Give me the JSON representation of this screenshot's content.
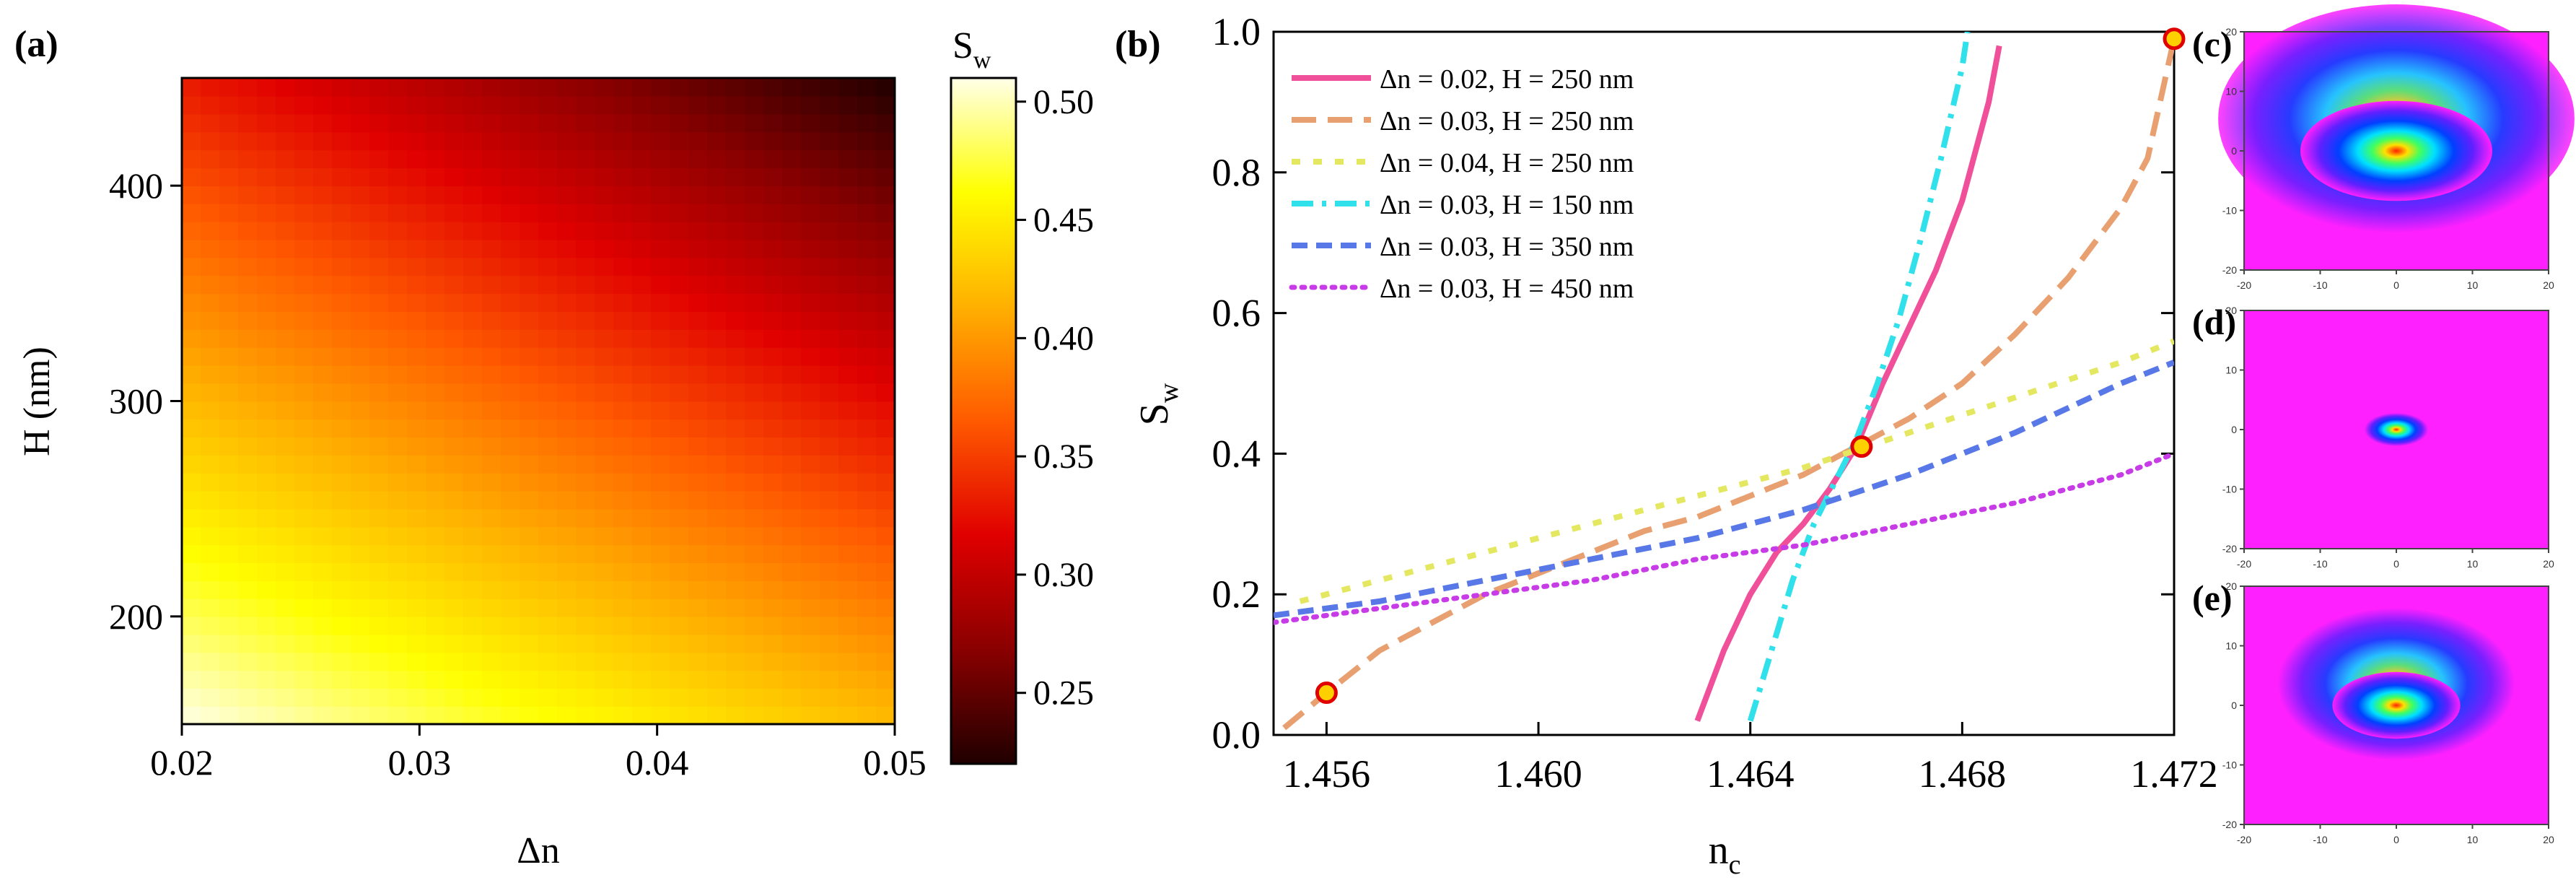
{
  "chart_data": [
    {
      "id": "a",
      "panel_label": "(a)",
      "type": "heatmap",
      "xlabel": "Δn",
      "ylabel": "H (nm)",
      "x_range": [
        0.02,
        0.05
      ],
      "y_range": [
        150,
        450
      ],
      "x_ticks": [
        "0.02",
        "0.03",
        "0.04",
        "0.05"
      ],
      "x_tick_values": [
        0.02,
        0.03,
        0.04,
        0.05
      ],
      "y_ticks": [
        "200",
        "300",
        "400"
      ],
      "y_tick_values": [
        200,
        300,
        400
      ],
      "colorbar": {
        "title_main": "S",
        "title_sub": "w",
        "range": [
          0.22,
          0.51
        ],
        "ticks": [
          "0.25",
          "0.30",
          "0.35",
          "0.40",
          "0.45",
          "0.50"
        ],
        "tick_values": [
          0.25,
          0.3,
          0.35,
          0.4,
          0.45,
          0.5
        ],
        "colormap": [
          "#200000",
          "#8a0000",
          "#e00000",
          "#ff5a00",
          "#ffb000",
          "#ffff00",
          "#ffffe8"
        ]
      },
      "corner_values": {
        "dn_0.02_H_150": 0.51,
        "dn_0.05_H_150": 0.42,
        "dn_0.02_H_450": 0.33,
        "dn_0.05_H_450": 0.22
      }
    },
    {
      "id": "b",
      "panel_label": "(b)",
      "type": "line",
      "xlabel_main": "n",
      "xlabel_sub": "c",
      "ylabel_main": "S",
      "ylabel_sub": "w",
      "xlim": [
        1.455,
        1.472
      ],
      "ylim": [
        0.0,
        1.0
      ],
      "x_ticks": [
        "1.456",
        "1.460",
        "1.464",
        "1.468",
        "1.472"
      ],
      "x_tick_values": [
        1.456,
        1.46,
        1.464,
        1.468,
        1.472
      ],
      "y_ticks": [
        "0.0",
        "0.2",
        "0.4",
        "0.6",
        "0.8",
        "1.0"
      ],
      "y_tick_values": [
        0.0,
        0.2,
        0.4,
        0.6,
        0.8,
        1.0
      ],
      "legend_position": "top-left",
      "series": [
        {
          "name": "Δn = 0.02, H = 250 nm",
          "color": "#f0509a",
          "dash": "solid",
          "x": [
            1.463,
            1.4635,
            1.464,
            1.4645,
            1.465,
            1.4655,
            1.466,
            1.4665,
            1.467,
            1.4675,
            1.468,
            1.4685,
            1.4687
          ],
          "y": [
            0.02,
            0.12,
            0.2,
            0.26,
            0.3,
            0.35,
            0.41,
            0.5,
            0.58,
            0.66,
            0.76,
            0.9,
            0.98
          ]
        },
        {
          "name": "Δn = 0.03, H = 250 nm",
          "color": "#e8a070",
          "dash": "long",
          "x": [
            1.4552,
            1.456,
            1.457,
            1.458,
            1.459,
            1.46,
            1.461,
            1.462,
            1.463,
            1.464,
            1.465,
            1.466,
            1.467,
            1.468,
            1.469,
            1.47,
            1.471,
            1.4715,
            1.472
          ],
          "y": [
            0.01,
            0.06,
            0.12,
            0.16,
            0.2,
            0.23,
            0.26,
            0.29,
            0.31,
            0.34,
            0.37,
            0.41,
            0.45,
            0.5,
            0.57,
            0.65,
            0.75,
            0.82,
            0.99
          ]
        },
        {
          "name": "Δn = 0.04, H = 250 nm",
          "color": "#e4e860",
          "dash": "short",
          "x": [
            1.4555,
            1.457,
            1.459,
            1.461,
            1.463,
            1.465,
            1.467,
            1.469,
            1.471,
            1.472
          ],
          "y": [
            0.19,
            0.22,
            0.26,
            0.3,
            0.34,
            0.38,
            0.43,
            0.48,
            0.53,
            0.56
          ]
        },
        {
          "name": "Δn = 0.03, H = 150 nm",
          "color": "#30e0ea",
          "dash": "dashdot",
          "x": [
            1.464,
            1.4644,
            1.4648,
            1.4652,
            1.4656,
            1.466,
            1.4664,
            1.4668,
            1.4672,
            1.4676,
            1.468,
            1.4681
          ],
          "y": [
            0.02,
            0.12,
            0.22,
            0.3,
            0.36,
            0.42,
            0.5,
            0.59,
            0.7,
            0.82,
            0.95,
            1.0
          ]
        },
        {
          "name": "Δn = 0.03, H = 350 nm",
          "color": "#5878e8",
          "dash": "medium",
          "x": [
            1.455,
            1.457,
            1.459,
            1.461,
            1.463,
            1.465,
            1.467,
            1.469,
            1.471,
            1.472
          ],
          "y": [
            0.17,
            0.19,
            0.22,
            0.25,
            0.28,
            0.32,
            0.37,
            0.43,
            0.5,
            0.53
          ]
        },
        {
          "name": "Δn = 0.03, H = 450 nm",
          "color": "#c83ce8",
          "dash": "dotted",
          "x": [
            1.455,
            1.457,
            1.459,
            1.461,
            1.463,
            1.465,
            1.467,
            1.469,
            1.471,
            1.472
          ],
          "y": [
            0.16,
            0.18,
            0.2,
            0.22,
            0.25,
            0.27,
            0.3,
            0.33,
            0.37,
            0.4
          ]
        }
      ],
      "markers": [
        {
          "x": 1.456,
          "y": 0.06,
          "fill": "#ffd000",
          "stroke": "#e00000"
        },
        {
          "x": 1.4661,
          "y": 0.41,
          "fill": "#ffd000",
          "stroke": "#e00000"
        },
        {
          "x": 1.472,
          "y": 0.99,
          "fill": "#ffd000",
          "stroke": "#e00000"
        }
      ]
    },
    {
      "id": "c",
      "panel_label": "(c)",
      "type": "heatmap",
      "xlim": [
        -20,
        20
      ],
      "ylim": [
        -20,
        20
      ],
      "x_ticks": [
        "-20",
        "-10",
        "0",
        "10",
        "20"
      ],
      "x_tick_values": [
        -20,
        -10,
        0,
        10,
        20
      ],
      "y_ticks": [
        "-20",
        "-10",
        "0",
        "10",
        "20"
      ],
      "y_tick_values": [
        -20,
        -10,
        0,
        10,
        20
      ],
      "mode_center": [
        0,
        0
      ],
      "mode_spread": [
        9,
        6
      ],
      "mode_cap_up": 1
    },
    {
      "id": "d",
      "panel_label": "(d)",
      "type": "heatmap",
      "xlim": [
        -20,
        20
      ],
      "ylim": [
        -20,
        20
      ],
      "x_ticks": [
        "-20",
        "-10",
        "0",
        "10",
        "20"
      ],
      "x_tick_values": [
        -20,
        -10,
        0,
        10,
        20
      ],
      "y_ticks": [
        "-20",
        "-10",
        "0",
        "10",
        "20"
      ],
      "y_tick_values": [
        -20,
        -10,
        0,
        10,
        20
      ],
      "mode_center": [
        0,
        0
      ],
      "mode_spread": [
        3,
        2
      ],
      "mode_cap_up": 0
    },
    {
      "id": "e",
      "panel_label": "(e)",
      "type": "heatmap",
      "xlim": [
        -20,
        20
      ],
      "ylim": [
        -20,
        20
      ],
      "x_ticks": [
        "-20",
        "-10",
        "0",
        "10",
        "20"
      ],
      "x_tick_values": [
        -20,
        -10,
        0,
        10,
        20
      ],
      "y_ticks": [
        "-20",
        "-10",
        "0",
        "10",
        "20"
      ],
      "y_tick_values": [
        -20,
        -10,
        0,
        10,
        20
      ],
      "mode_center": [
        0,
        0
      ],
      "mode_spread": [
        6,
        4
      ],
      "mode_cap_up": 1
    }
  ]
}
